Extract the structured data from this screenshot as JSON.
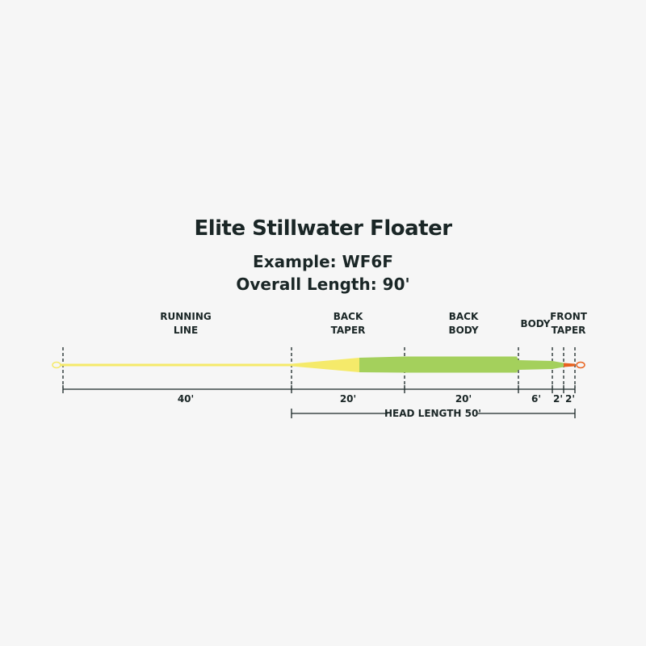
{
  "title": "Elite Stillwater Floater",
  "example": "Example: WF6F",
  "overall_length": "Overall Length: 90'",
  "sections": [
    {
      "label": "RUNNING\nLINE",
      "length": "40'"
    },
    {
      "label": "BACK\nTAPER",
      "length": "20'"
    },
    {
      "label": "BACK\nBODY",
      "length": "20'"
    },
    {
      "label": "BODY",
      "length": "6'"
    },
    {
      "label": "FRONT\nTAPER",
      "length": "2'"
    },
    {
      "label": "",
      "length": "2'"
    }
  ],
  "head_length": "HEAD LENGTH 50'",
  "colors": {
    "running_line": "#f5ea6a",
    "head": "#a4d05c",
    "tip": "#e8621f",
    "text": "#1a2626"
  }
}
